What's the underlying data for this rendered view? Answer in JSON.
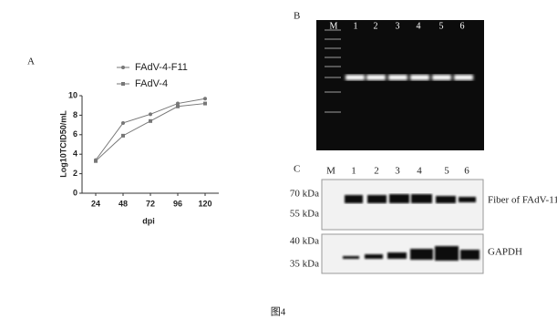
{
  "chart_data": {
    "type": "line",
    "panel": "A",
    "y_label": "Log10TCID50/mL",
    "x_label": "dpi",
    "categories": [
      "24",
      "48",
      "72",
      "96",
      "120"
    ],
    "series": [
      {
        "name": "FAdV-4-F11",
        "color": "#777777",
        "marker": "circle",
        "values": [
          3.4,
          7.2,
          8.1,
          9.2,
          9.7
        ]
      },
      {
        "name": "FAdV-4",
        "color": "#777777",
        "marker": "square",
        "values": [
          3.3,
          5.9,
          7.4,
          8.9,
          9.2
        ]
      }
    ],
    "ylim": [
      0,
      10
    ],
    "yticks": [
      0,
      2,
      4,
      6,
      8,
      10
    ],
    "grid": false
  },
  "gel": {
    "panel": "B",
    "lanes": [
      "M",
      "1",
      "2",
      "3",
      "4",
      "5",
      "6"
    ]
  },
  "blot": {
    "panel": "C",
    "lanes": [
      "M",
      "1",
      "2",
      "3",
      "4",
      "5",
      "6"
    ],
    "top": {
      "markers": [
        "70 kDa",
        "55 kDa"
      ],
      "label": "Fiber of FAdV-11"
    },
    "bottom": {
      "markers": [
        "40 kDa",
        "35 kDa"
      ],
      "label": "GAPDH"
    }
  },
  "caption": "图4"
}
